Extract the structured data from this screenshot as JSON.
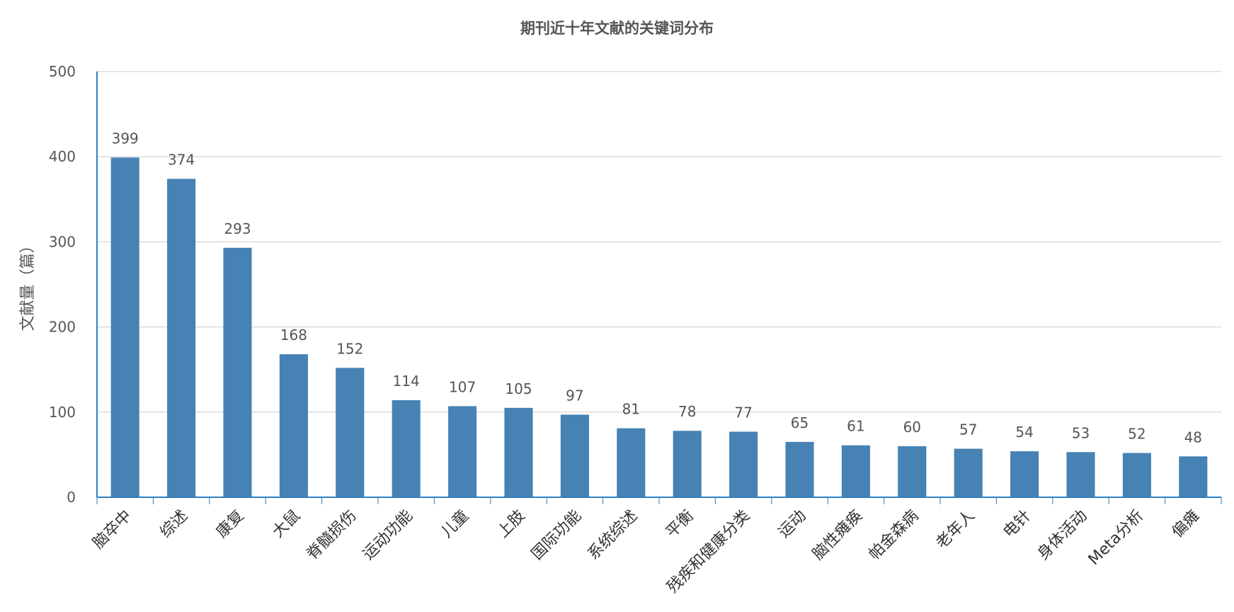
{
  "chart_data": {
    "type": "bar",
    "title": "期刊近十年文献的关键词分布",
    "xlabel": "",
    "ylabel": "文献量（篇）",
    "ylim": [
      0,
      500
    ],
    "yticks": [
      0,
      100,
      200,
      300,
      400,
      500
    ],
    "grid": true,
    "bar_color": "#4682b4",
    "axis_color": "#2f7fc1",
    "categories": [
      "脑卒中",
      "综述",
      "康复",
      "大鼠",
      "脊髓损伤",
      "运动功能",
      "儿童",
      "上肢",
      "国际功能",
      "系统综述",
      "平衡",
      "残疾和健康分类",
      "运动",
      "脑性瘫痪",
      "帕金森病",
      "老年人",
      "电针",
      "身体活动",
      "Meta分析",
      "偏瘫"
    ],
    "values": [
      399,
      374,
      293,
      168,
      152,
      114,
      107,
      105,
      97,
      81,
      78,
      77,
      65,
      61,
      60,
      57,
      54,
      53,
      52,
      48
    ]
  }
}
